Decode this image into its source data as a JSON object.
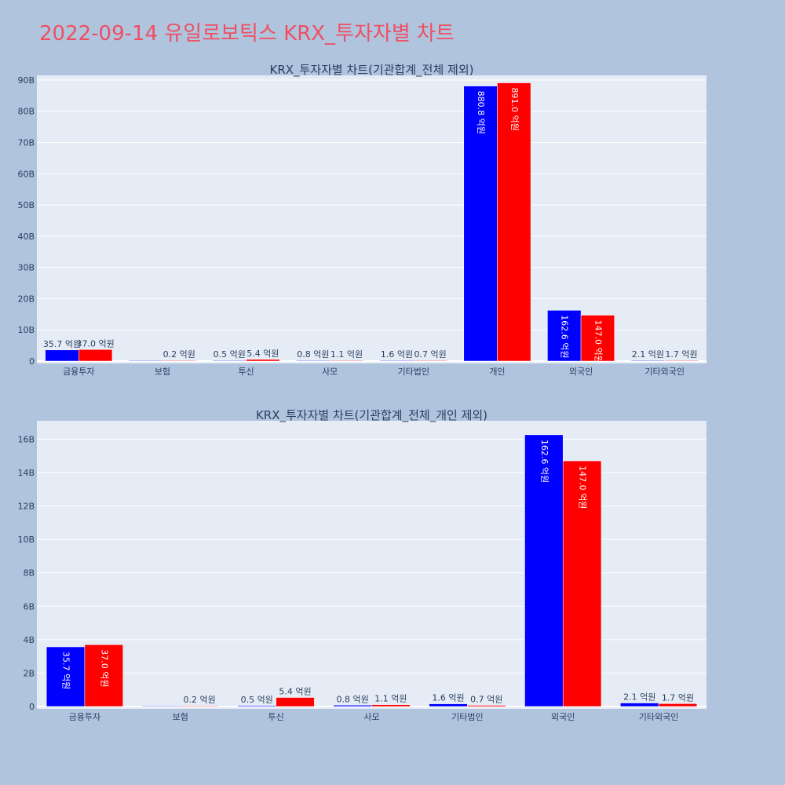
{
  "title": "2022-09-14 유일로보틱스 KRX_투자자별 차트",
  "colors": {
    "buy": "#0000ff",
    "sell": "#ff0000",
    "plot_bg": "#e5ecf6",
    "paper_bg": "#b0c4de",
    "title": "#ef4f63"
  },
  "chart_data": [
    {
      "type": "bar",
      "title": "KRX_투자자별 차트(기관합계_전체 제외)",
      "categories": [
        "금융투자",
        "보험",
        "투신",
        "사모",
        "기타법인",
        "개인",
        "외국인",
        "기타외국인"
      ],
      "series": [
        {
          "values": [
            3.57,
            0.02,
            0.05,
            0.08,
            0.16,
            88.08,
            16.26,
            0.21
          ],
          "labels": [
            "35.7 억원",
            "",
            "0.5 억원",
            "0.8 억원",
            "1.6 억원",
            "880.8 억원",
            "162.6 억원",
            "2.1 억원"
          ]
        },
        {
          "values": [
            3.7,
            0.02,
            0.54,
            0.11,
            0.07,
            89.1,
            14.7,
            0.17
          ],
          "labels": [
            "37.0 억원",
            "0.2 억원",
            "5.4 억원",
            "1.1 억원",
            "0.7 억원",
            "891.0 억원",
            "147.0 억원",
            "1.7 억원"
          ]
        }
      ],
      "yticks": [
        "0",
        "10B",
        "20B",
        "30B",
        "40B",
        "50B",
        "60B",
        "70B",
        "80B",
        "90B"
      ],
      "ylim": [
        0,
        91.5
      ],
      "grid": true
    },
    {
      "type": "bar",
      "title": "KRX_투자자별 차트(기관합계_전체_개인 제외)",
      "categories": [
        "금융투자",
        "보험",
        "투신",
        "사모",
        "기타법인",
        "외국인",
        "기타외국인"
      ],
      "series": [
        {
          "values": [
            3.57,
            0.02,
            0.05,
            0.08,
            0.16,
            16.26,
            0.21
          ],
          "labels": [
            "35.7 억원",
            "",
            "0.5 억원",
            "0.8 억원",
            "1.6 억원",
            "162.6 억원",
            "2.1 억원"
          ]
        },
        {
          "values": [
            3.7,
            0.02,
            0.54,
            0.11,
            0.07,
            14.7,
            0.17
          ],
          "labels": [
            "37.0 억원",
            "0.2 억원",
            "5.4 억원",
            "1.1 억원",
            "0.7 억원",
            "147.0 억원",
            "1.7 억원"
          ]
        }
      ],
      "yticks": [
        "0",
        "2B",
        "4B",
        "6B",
        "8B",
        "10B",
        "12B",
        "14B",
        "16B"
      ],
      "ylim": [
        0,
        17.1
      ],
      "grid": true
    }
  ]
}
